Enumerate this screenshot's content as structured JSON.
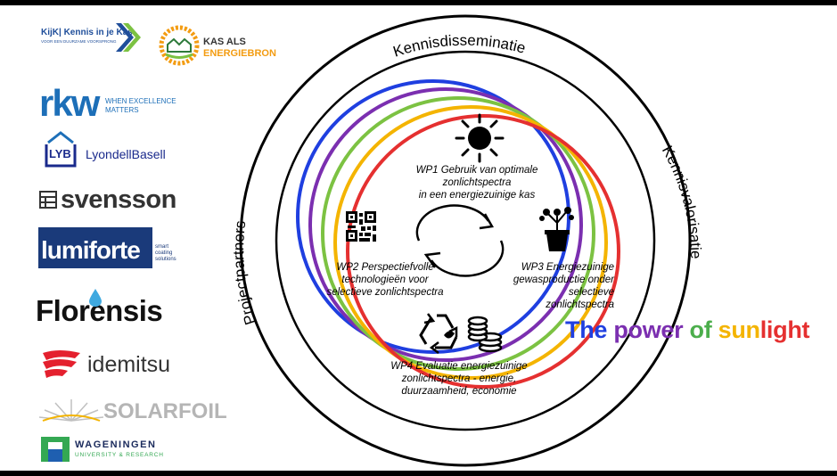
{
  "logos": {
    "kijk": {
      "main": "KijK| Kennis in je Kas",
      "sub": "VOOR EEN DUURZAME VOORSPRONG"
    },
    "kas": {
      "line1": "KAS ALS",
      "line2": "ENERGIEBRON"
    },
    "rkw": {
      "word": "rkw",
      "tag1": "WHEN EXCELLENCE",
      "tag2": "MATTERS"
    },
    "lyb": {
      "badge": "LYB",
      "name": "LyondellBasell"
    },
    "svensson": {
      "name": "svensson"
    },
    "lumiforte": {
      "name": "lumiforte",
      "tag1": "smart",
      "tag2": "coating",
      "tag3": "solutions"
    },
    "florensis": {
      "name": "Florensis"
    },
    "idemitsu": {
      "name": "idemitsu"
    },
    "solarfoil": {
      "name": "SOLARFOIL"
    },
    "wageningen": {
      "line1": "WAGENINGEN",
      "line2": "UNIVERSITY & RESEARCH"
    }
  },
  "diagram": {
    "outer_top": "Kennisdisseminatie",
    "outer_right": "Kennisvalorisatie",
    "outer_left": "Projectpartners",
    "wp1": [
      "WP1 Gebruik van optimale zonlichtspectra",
      "in een energiezuinige kas"
    ],
    "wp2": [
      "WP2 Perspectiefvolle",
      "technologieën voor",
      "selectieve zonlichtspectra"
    ],
    "wp3": [
      "WP3 Energiezuinige",
      "gewasproductie onder",
      "selectieve zonlichtspectra"
    ],
    "wp4": [
      "WP4 Evaluatie energiezuinige",
      "zonlichtspectra  - energie,",
      "duurzaamheid, economie"
    ],
    "icons": [
      "sun-icon",
      "qr-code-icon",
      "cycle-arrows-icon",
      "plant-pot-icon",
      "recycle-icon",
      "coins-icon"
    ],
    "ring_colors": [
      "#1f3fe0",
      "#7b2fb0",
      "#7cc242",
      "#f4b400",
      "#e53030"
    ]
  },
  "tagline": {
    "the": "The",
    "power": "power",
    "of": "of",
    "sun": "sun",
    "light": "light",
    "colors": {
      "the": "#1f3fe0",
      "power": "#7b2fb0",
      "of": "#4cae4c",
      "sun": "#f4b400",
      "light": "#e53030"
    }
  }
}
